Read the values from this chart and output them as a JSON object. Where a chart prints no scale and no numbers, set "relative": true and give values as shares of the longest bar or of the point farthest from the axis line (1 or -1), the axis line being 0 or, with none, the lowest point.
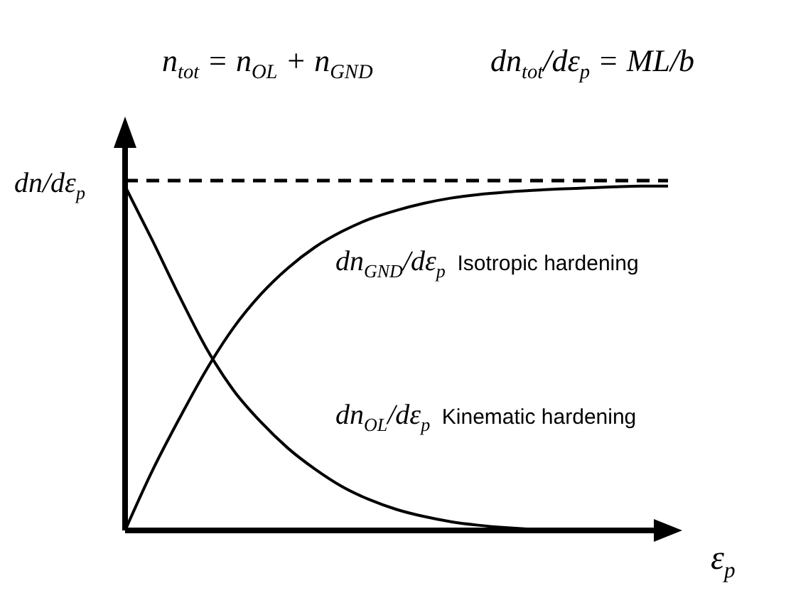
{
  "chart_data": {
    "type": "line",
    "relative": true,
    "marker": "none",
    "title": "n$_{tot}$ = n$_{OL}$ + n$_{GND}$",
    "ylabel": "dn/dε$_{p}$",
    "xlabel": "ε$_{p}$",
    "annotations": [
      "dn$_{tot}$/dε$_{p}$ = ML/b"
    ],
    "categories": [
      null,
      null,
      null,
      null,
      null,
      null,
      null,
      null,
      null,
      null,
      null,
      null,
      null,
      null,
      null,
      null,
      null,
      null,
      null,
      null,
      null
    ],
    "series": [
      {
        "name": "dn$_{GND}$/dε$_{p}$ Isotropic hardening",
        "color": "#000000",
        "line_style": "solid",
        "values": [
          0,
          0.17,
          0.32,
          0.46,
          0.58,
          0.675,
          0.75,
          0.81,
          0.855,
          0.89,
          0.915,
          0.935,
          0.95,
          0.96,
          0.967,
          0.972,
          0.976,
          0.979,
          0.982,
          0.984,
          0.984
        ]
      },
      {
        "name": "dn$_{OL}$/dε$_{p}$ Kinematic hardening",
        "color": "#000000",
        "line_style": "solid",
        "values": [
          0.984,
          0.83,
          0.67,
          0.52,
          0.4,
          0.31,
          0.235,
          0.175,
          0.125,
          0.088,
          0.06,
          0.04,
          0.025,
          0.015,
          0.008,
          0.003,
          0,
          0,
          0,
          0,
          0
        ]
      },
      {
        "color": "#000000",
        "line_style": "dashed",
        "values": [
          1,
          1,
          1,
          1,
          1,
          1,
          1,
          1,
          1,
          1,
          1,
          1,
          1,
          1,
          1,
          1,
          1,
          1,
          1,
          1,
          1
        ]
      }
    ]
  }
}
